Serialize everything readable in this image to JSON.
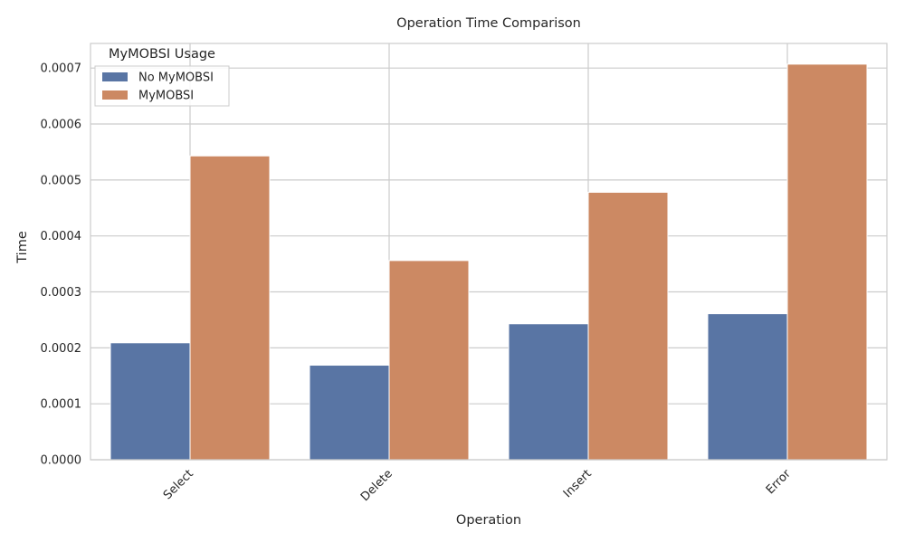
{
  "chart_data": {
    "type": "bar",
    "title": "Operation Time Comparison",
    "xlabel": "Operation",
    "ylabel": "Time",
    "categories": [
      "Select",
      "Delete",
      "Insert",
      "Error"
    ],
    "series": [
      {
        "name": "No MyMOBSI",
        "color": "#5975a4",
        "values": [
          0.000209,
          0.000169,
          0.000243,
          0.000261
        ]
      },
      {
        "name": "MyMOBSI",
        "color": "#cc8963",
        "values": [
          0.000543,
          0.000356,
          0.000478,
          0.000707
        ]
      }
    ],
    "ylim": [
      0,
      0.000744
    ],
    "yticks": [
      0,
      0.0001,
      0.0002,
      0.0003,
      0.0004,
      0.0005,
      0.0006,
      0.0007
    ],
    "ytick_labels": [
      "0.0000",
      "0.0001",
      "0.0002",
      "0.0003",
      "0.0004",
      "0.0005",
      "0.0006",
      "0.0007"
    ],
    "xtick_rotation_deg": 45,
    "grid": true,
    "legend": {
      "title": "MyMOBSI Usage",
      "placement": "top-left"
    }
  }
}
